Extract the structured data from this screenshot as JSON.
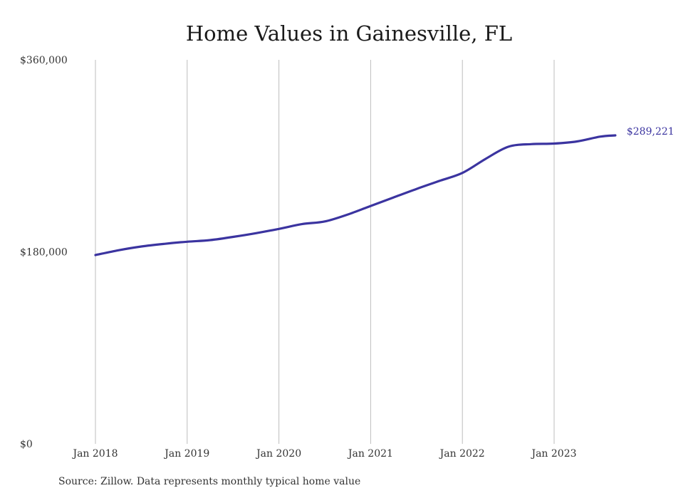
{
  "title": "Home Values in Gainesville, FL",
  "source": "Source: Zillow. Data represents monthly typical home value",
  "colors": {
    "line": "#3b34a0",
    "grid": "#bdbdbd"
  },
  "chart_data": {
    "type": "line",
    "title": "Home Values in Gainesville, FL",
    "xlabel": "",
    "ylabel": "",
    "ylim": [
      0,
      360000
    ],
    "y_ticks": [
      0,
      180000,
      360000
    ],
    "y_tick_labels": [
      "$0",
      "$180,000",
      "$360,000"
    ],
    "x_ticks": [
      "2018-01",
      "2019-01",
      "2020-01",
      "2021-01",
      "2022-01",
      "2023-01"
    ],
    "x_tick_labels": [
      "Jan 2018",
      "Jan 2019",
      "Jan 2020",
      "Jan 2021",
      "Jan 2022",
      "Jan 2023"
    ],
    "grid": "vertical",
    "end_label": "$289,221",
    "series": [
      {
        "x": [
          "2018-01",
          "2018-04",
          "2018-07",
          "2018-10",
          "2019-01",
          "2019-04",
          "2019-07",
          "2019-10",
          "2020-01",
          "2020-04",
          "2020-07",
          "2020-10",
          "2021-01",
          "2021-04",
          "2021-07",
          "2021-10",
          "2022-01",
          "2022-04",
          "2022-07",
          "2022-10",
          "2023-01",
          "2023-04",
          "2023-07",
          "2023-09"
        ],
        "values": [
          177000,
          181500,
          185000,
          187500,
          189500,
          191000,
          194000,
          197500,
          201500,
          206000,
          208500,
          215000,
          223000,
          231000,
          239000,
          246500,
          254000,
          267000,
          278500,
          281000,
          281500,
          283500,
          288000,
          289221
        ]
      }
    ]
  }
}
